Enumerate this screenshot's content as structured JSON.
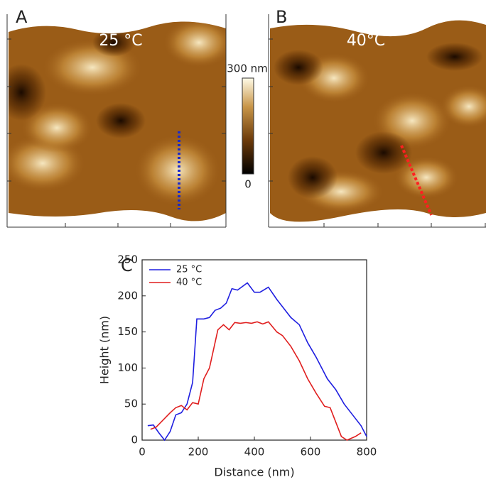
{
  "panels": [
    {
      "label": "A",
      "temperature": "25 °C"
    },
    {
      "label": "B",
      "temperature": "40°C"
    }
  ],
  "colorbar": {
    "max_label": "300 nm",
    "min_label": "0"
  },
  "chart_data": {
    "type": "line",
    "panel_label": "C",
    "x_label": "Distance (nm)",
    "y_label": "Height (nm)",
    "xlim": [
      0,
      800
    ],
    "ylim": [
      0,
      250
    ],
    "xticks": [
      0,
      200,
      400,
      600,
      800
    ],
    "yticks": [
      0,
      50,
      100,
      150,
      200,
      250
    ],
    "legend": "upper left",
    "series": [
      {
        "name": "25 °C",
        "color": "#1f1fe0",
        "x": [
          20,
          40,
          60,
          80,
          100,
          120,
          140,
          160,
          180,
          195,
          220,
          240,
          260,
          280,
          300,
          320,
          340,
          375,
          400,
          420,
          450,
          480,
          500,
          530,
          560,
          590,
          620,
          640,
          660,
          690,
          720,
          750,
          780,
          800
        ],
        "values": [
          20,
          21,
          10,
          0,
          12,
          35,
          38,
          50,
          80,
          168,
          168,
          170,
          180,
          183,
          190,
          210,
          208,
          218,
          205,
          205,
          212,
          195,
          185,
          170,
          160,
          135,
          115,
          100,
          85,
          70,
          50,
          35,
          20,
          5
        ]
      },
      {
        "name": "40 °C",
        "color": "#e01f1f",
        "x": [
          30,
          50,
          80,
          100,
          120,
          140,
          160,
          180,
          200,
          220,
          240,
          270,
          290,
          310,
          330,
          350,
          370,
          390,
          410,
          430,
          450,
          480,
          500,
          530,
          560,
          590,
          620,
          650,
          670,
          690,
          710,
          730,
          760,
          780
        ],
        "values": [
          15,
          18,
          30,
          38,
          45,
          48,
          42,
          52,
          50,
          85,
          100,
          153,
          160,
          153,
          163,
          162,
          163,
          162,
          164,
          161,
          164,
          150,
          145,
          130,
          110,
          85,
          65,
          47,
          45,
          25,
          5,
          0,
          5,
          10
        ]
      }
    ]
  }
}
